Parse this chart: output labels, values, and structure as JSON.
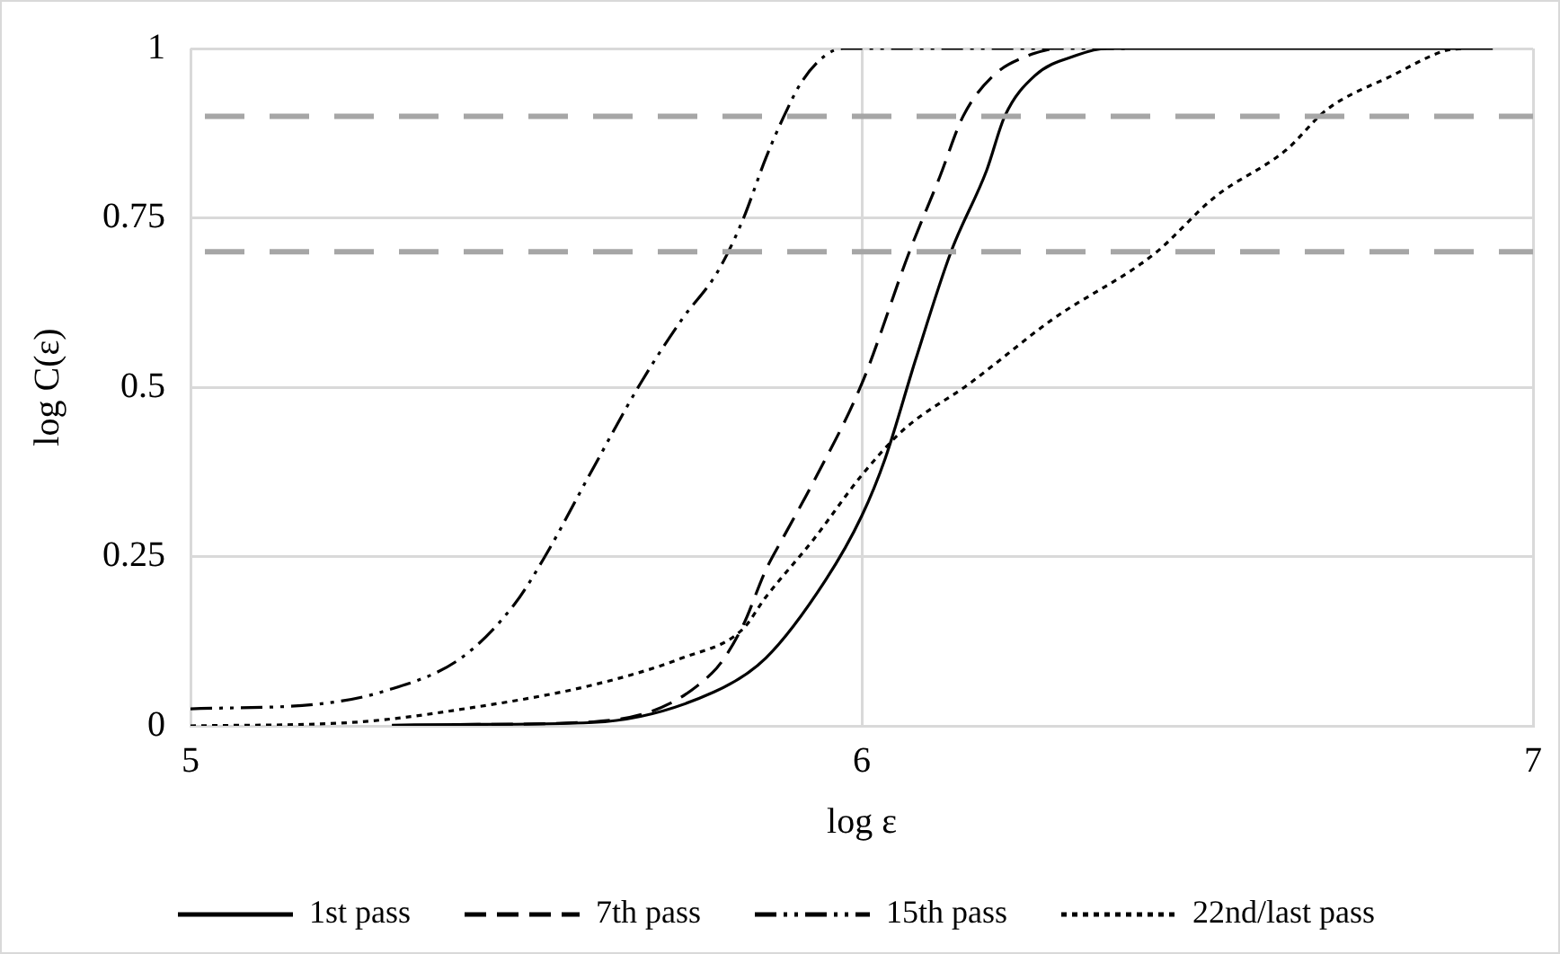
{
  "chart_data": {
    "type": "line",
    "xlabel": "log ε",
    "ylabel": "log C(ε)",
    "xlim": [
      5,
      7
    ],
    "xticks": [
      5,
      6,
      7
    ],
    "ylim": [
      0,
      1
    ],
    "yticks": [
      0,
      0.25,
      0.5,
      0.75,
      1
    ],
    "grid": true,
    "legend": "bottom",
    "marker": "none",
    "series": [
      {
        "name": "1st pass",
        "color": "#000000",
        "line_style": "solid",
        "x": [
          5.3,
          5.4,
          5.6,
          5.78,
          5.857,
          5.946,
          6,
          6.035,
          6.08,
          6.133,
          6.186,
          6.213,
          6.258,
          6.32,
          6.365,
          6.94
        ],
        "values": [
          0.001,
          0.002,
          0.005,
          0.05,
          0.1,
          0.215,
          0.31,
          0.395,
          0.54,
          0.7,
          0.82,
          0.9,
          0.96,
          0.99,
          1,
          1
        ]
      },
      {
        "name": "7th pass",
        "color": "#000000",
        "line_style": "dashed",
        "x": [
          5.4,
          5.6,
          5.777,
          5.822,
          5.857,
          5.884,
          5.928,
          6,
          6.071,
          6.116,
          6.151,
          6.196,
          6.249,
          6.284
        ],
        "values": [
          0.002,
          0.006,
          0.078,
          0.146,
          0.23,
          0.28,
          0.36,
          0.505,
          0.7,
          0.81,
          0.9,
          0.96,
          0.99,
          1
        ]
      },
      {
        "name": "15th pass",
        "color": "#000000",
        "line_style": "dashdot",
        "x": [
          5,
          5.198,
          5.288,
          5.403,
          5.483,
          5.528,
          5.598,
          5.67,
          5.732,
          5.785,
          5.822,
          5.857,
          5.884,
          5.91,
          5.946,
          5.972,
          6.4
        ],
        "values": [
          0.025,
          0.033,
          0.051,
          0.1,
          0.18,
          0.25,
          0.377,
          0.505,
          0.6,
          0.67,
          0.745,
          0.838,
          0.9,
          0.95,
          0.99,
          1,
          1
        ]
      },
      {
        "name": "22nd/last pass",
        "color": "#000000",
        "line_style": "dotted",
        "x": [
          5,
          5.24,
          5.42,
          5.598,
          5.732,
          5.822,
          5.857,
          5.928,
          6,
          6.062,
          6.16,
          6.284,
          6.436,
          6.525,
          6.632,
          6.693,
          6.79,
          6.87,
          6.9
        ],
        "values": [
          0,
          0.005,
          0.027,
          0.06,
          0.1,
          0.142,
          0.19,
          0.275,
          0.37,
          0.437,
          0.505,
          0.6,
          0.697,
          0.78,
          0.85,
          0.91,
          0.96,
          0.997,
          1
        ]
      }
    ],
    "ref_lines": [
      {
        "axis": "y",
        "value": 0.9,
        "color": "#a6a6a6",
        "line_style": "dashed"
      },
      {
        "axis": "y",
        "value": 0.7,
        "color": "#a6a6a6",
        "line_style": "dashed"
      }
    ]
  }
}
